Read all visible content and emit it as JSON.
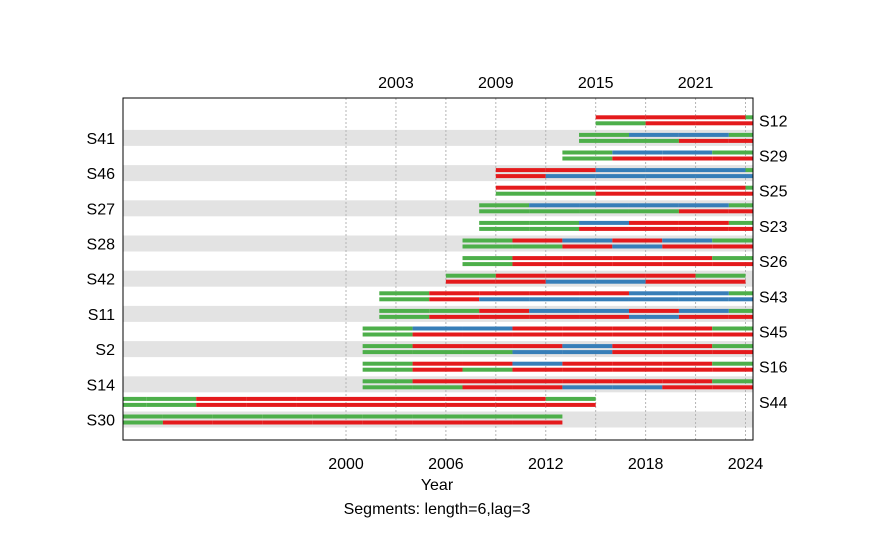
{
  "chart_data": {
    "type": "segment-timeline",
    "xlabel": "Year",
    "caption": "Segments: length=6,lag=3",
    "xlim": [
      1997,
      2024.8
    ],
    "bottom_ticks": [
      2000,
      2006,
      2012,
      2018,
      2024
    ],
    "top_ticks": [
      2003,
      2009,
      2015,
      2021
    ],
    "grid": "dotted vertical lines at top and bottom tick years",
    "colors": {
      "green": "#4daf4a",
      "red": "#e41a1c",
      "blue": "#377eb8",
      "row_band": "#e3e3e3",
      "grid": "#b4b4b4"
    },
    "series": [
      {
        "name": "S30",
        "side": "left",
        "start": 1977,
        "upper": [
          "green",
          "green",
          "green",
          "green",
          "green",
          "green",
          "green",
          "green",
          "green",
          "green",
          "green",
          "green"
        ],
        "lower": [
          "green",
          "green",
          "green",
          "green",
          "red",
          "red",
          "red",
          "red",
          "red",
          "red",
          "red",
          "red"
        ]
      },
      {
        "name": "S44",
        "side": "right",
        "start": 1979,
        "upper": [
          "green",
          "green",
          "green",
          "green",
          "red",
          "red",
          "red",
          "red",
          "red",
          "red",
          "red",
          "green"
        ],
        "lower": [
          "green",
          "green",
          "green",
          "green",
          "red",
          "red",
          "red",
          "red",
          "red",
          "red",
          "red",
          "red"
        ]
      },
      {
        "name": "S14",
        "side": "left",
        "start": 2001,
        "upper": [
          "green",
          "red",
          "red",
          "red",
          "red",
          "red",
          "red",
          "green"
        ],
        "lower": [
          "green",
          "green",
          "red",
          "red",
          "blue",
          "blue",
          "red",
          "red"
        ]
      },
      {
        "name": "S16",
        "side": "right",
        "start": 2001,
        "upper": [
          "green",
          "red",
          "red",
          "blue",
          "red",
          "red",
          "red",
          "green"
        ],
        "lower": [
          "green",
          "red",
          "green",
          "red",
          "red",
          "red",
          "red",
          "red"
        ]
      },
      {
        "name": "S2",
        "side": "left",
        "start": 2001,
        "upper": [
          "green",
          "red",
          "red",
          "red",
          "blue",
          "red",
          "red",
          "green"
        ],
        "lower": [
          "green",
          "green",
          "green",
          "blue",
          "blue",
          "red",
          "red",
          "red"
        ]
      },
      {
        "name": "S45",
        "side": "right",
        "start": 2001,
        "upper": [
          "green",
          "blue",
          "blue",
          "red",
          "red",
          "red",
          "red",
          "green"
        ],
        "lower": [
          "green",
          "red",
          "red",
          "red",
          "red",
          "red",
          "red",
          "red"
        ]
      },
      {
        "name": "S11",
        "side": "left",
        "start": 2002,
        "upper": [
          "green",
          "green",
          "red",
          "blue",
          "blue",
          "red",
          "blue",
          "green"
        ],
        "lower": [
          "green",
          "red",
          "red",
          "red",
          "red",
          "blue",
          "red",
          "red"
        ]
      },
      {
        "name": "S43",
        "side": "right",
        "start": 2002,
        "upper": [
          "green",
          "red",
          "red",
          "red",
          "red",
          "blue",
          "blue",
          "green"
        ],
        "lower": [
          "green",
          "red",
          "blue",
          "blue",
          "blue",
          "blue",
          "blue",
          "blue"
        ]
      },
      {
        "name": "S42",
        "side": "left",
        "start": 2006,
        "upper": [
          "green",
          "red",
          "red",
          "red",
          "red",
          "green"
        ],
        "lower": [
          "red",
          "red",
          "blue",
          "blue",
          "red",
          "red"
        ]
      },
      {
        "name": "S26",
        "side": "right",
        "start": 2007,
        "upper": [
          "green",
          "red",
          "red",
          "red",
          "red",
          "green"
        ],
        "lower": [
          "green",
          "red",
          "red",
          "red",
          "red",
          "red"
        ]
      },
      {
        "name": "S28",
        "side": "left",
        "start": 2007,
        "upper": [
          "green",
          "red",
          "blue",
          "red",
          "blue",
          "green"
        ],
        "lower": [
          "green",
          "green",
          "red",
          "blue",
          "red",
          "red"
        ]
      },
      {
        "name": "S23",
        "side": "right",
        "start": 2008,
        "upper": [
          "green",
          "green",
          "blue",
          "red",
          "red",
          "green"
        ],
        "lower": [
          "green",
          "green",
          "red",
          "red",
          "red",
          "red"
        ]
      },
      {
        "name": "S27",
        "side": "left",
        "start": 2008,
        "upper": [
          "green",
          "blue",
          "blue",
          "blue",
          "blue",
          "green"
        ],
        "lower": [
          "green",
          "green",
          "green",
          "green",
          "red",
          "red"
        ]
      },
      {
        "name": "S25",
        "side": "right",
        "start": 2009,
        "upper": [
          "red",
          "red",
          "red",
          "red",
          "red",
          "green"
        ],
        "lower": [
          "green",
          "green",
          "red",
          "red",
          "red",
          "red"
        ]
      },
      {
        "name": "S46",
        "side": "left",
        "start": 2009,
        "upper": [
          "red",
          "red",
          "blue",
          "blue",
          "blue",
          "green"
        ],
        "lower": [
          "red",
          "blue",
          "blue",
          "blue",
          "blue",
          "blue"
        ]
      },
      {
        "name": "S29",
        "side": "right",
        "start": 2013,
        "upper": [
          "green",
          "blue",
          "blue",
          "green"
        ],
        "lower": [
          "green",
          "red",
          "red",
          "red"
        ]
      },
      {
        "name": "S41",
        "side": "left",
        "start": 2014,
        "upper": [
          "green",
          "blue",
          "blue",
          "green"
        ],
        "lower": [
          "green",
          "green",
          "red",
          "red"
        ]
      },
      {
        "name": "S12",
        "side": "right",
        "start": 2015,
        "upper": [
          "red",
          "red",
          "red",
          "green"
        ],
        "lower": [
          "green",
          "red",
          "red",
          "red"
        ]
      }
    ]
  }
}
